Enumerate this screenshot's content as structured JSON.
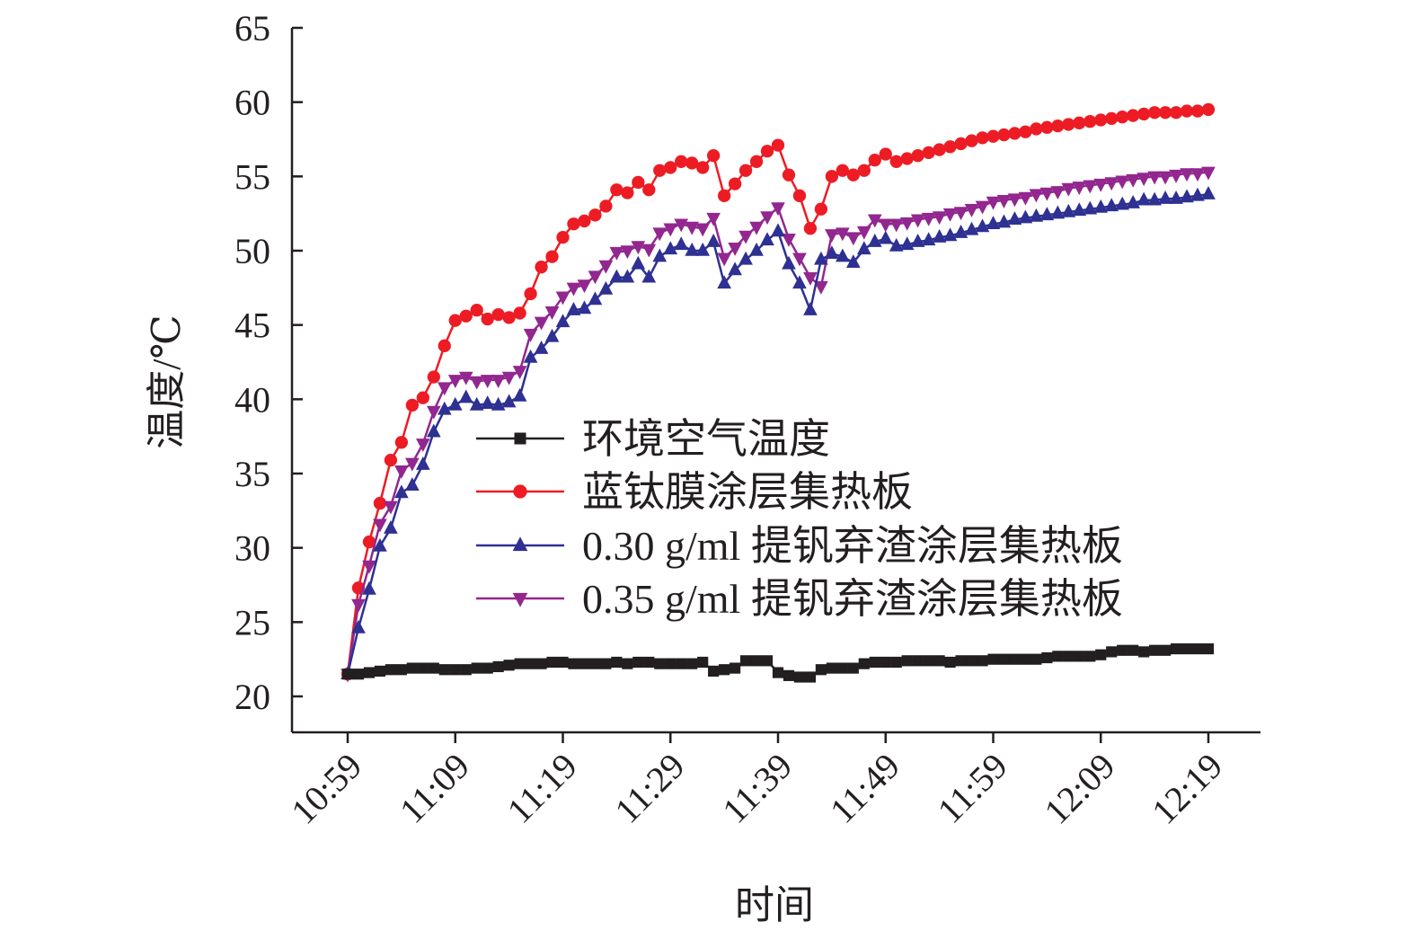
{
  "chart_data": {
    "type": "line",
    "xlabel": "时间",
    "ylabel": "温度/℃",
    "ylim": [
      20,
      65
    ],
    "yticks": [
      "20",
      "25",
      "30",
      "35",
      "40",
      "45",
      "50",
      "55",
      "60",
      "65"
    ],
    "xticks": [
      "10:59",
      "11:09",
      "11:19",
      "11:29",
      "11:39",
      "11:49",
      "11:59",
      "12:09",
      "12:19"
    ],
    "xlim": [
      "10:59",
      "12:19"
    ],
    "legend_position": "center-right",
    "grid": false,
    "series": [
      {
        "name": "环境空气温度",
        "color": "#231f20",
        "marker": "square",
        "x": [
          "10:59",
          "11:00",
          "11:01",
          "11:02",
          "11:03",
          "11:04",
          "11:05",
          "11:06",
          "11:07",
          "11:08",
          "11:09",
          "11:10",
          "11:11",
          "11:12",
          "11:13",
          "11:14",
          "11:15",
          "11:16",
          "11:17",
          "11:18",
          "11:19",
          "11:20",
          "11:21",
          "11:22",
          "11:23",
          "11:24",
          "11:25",
          "11:26",
          "11:27",
          "11:28",
          "11:29",
          "11:30",
          "11:31",
          "11:32",
          "11:33",
          "11:34",
          "11:35",
          "11:36",
          "11:37",
          "11:38",
          "11:39",
          "11:40",
          "11:41",
          "11:42",
          "11:43",
          "11:44",
          "11:45",
          "11:46",
          "11:47",
          "11:48",
          "11:49",
          "11:50",
          "11:51",
          "11:52",
          "11:53",
          "11:54",
          "11:55",
          "11:56",
          "11:57",
          "11:58",
          "11:59",
          "12:00",
          "12:01",
          "12:02",
          "12:03",
          "12:04",
          "12:05",
          "12:06",
          "12:07",
          "12:08",
          "12:09",
          "12:10",
          "12:11",
          "12:12",
          "12:13",
          "12:14",
          "12:15",
          "12:16",
          "12:17",
          "12:18",
          "12:19"
        ],
        "y": [
          21.5,
          21.5,
          21.6,
          21.7,
          21.8,
          21.8,
          21.9,
          21.9,
          21.9,
          21.8,
          21.8,
          21.8,
          21.9,
          21.9,
          22.0,
          22.1,
          22.2,
          22.2,
          22.2,
          22.3,
          22.3,
          22.2,
          22.2,
          22.2,
          22.2,
          22.3,
          22.2,
          22.3,
          22.3,
          22.2,
          22.2,
          22.2,
          22.2,
          22.3,
          21.7,
          21.8,
          21.9,
          22.4,
          22.4,
          22.4,
          21.6,
          21.4,
          21.3,
          21.3,
          21.8,
          21.9,
          21.9,
          21.9,
          22.2,
          22.3,
          22.3,
          22.3,
          22.4,
          22.4,
          22.4,
          22.4,
          22.3,
          22.4,
          22.4,
          22.4,
          22.5,
          22.5,
          22.5,
          22.5,
          22.5,
          22.6,
          22.7,
          22.7,
          22.7,
          22.7,
          22.8,
          23.0,
          23.1,
          23.1,
          23.0,
          23.1,
          23.1,
          23.2,
          23.2,
          23.2,
          23.2
        ]
      },
      {
        "name": "蓝钛膜涂层集热板",
        "color": "#ed1c24",
        "marker": "circle",
        "x": [
          "10:59",
          "11:00",
          "11:01",
          "11:02",
          "11:03",
          "11:04",
          "11:05",
          "11:06",
          "11:07",
          "11:08",
          "11:09",
          "11:10",
          "11:11",
          "11:12",
          "11:13",
          "11:14",
          "11:15",
          "11:16",
          "11:17",
          "11:18",
          "11:19",
          "11:20",
          "11:21",
          "11:22",
          "11:23",
          "11:24",
          "11:25",
          "11:26",
          "11:27",
          "11:28",
          "11:29",
          "11:30",
          "11:31",
          "11:32",
          "11:33",
          "11:34",
          "11:35",
          "11:36",
          "11:37",
          "11:38",
          "11:39",
          "11:40",
          "11:41",
          "11:42",
          "11:43",
          "11:44",
          "11:45",
          "11:46",
          "11:47",
          "11:48",
          "11:49",
          "11:50",
          "11:51",
          "11:52",
          "11:53",
          "11:54",
          "11:55",
          "11:56",
          "11:57",
          "11:58",
          "11:59",
          "12:00",
          "12:01",
          "12:02",
          "12:03",
          "12:04",
          "12:05",
          "12:06",
          "12:07",
          "12:08",
          "12:09",
          "12:10",
          "12:11",
          "12:12",
          "12:13",
          "12:14",
          "12:15",
          "12:16",
          "12:17",
          "12:18",
          "12:19"
        ],
        "y": [
          21.5,
          27.3,
          30.4,
          33.0,
          35.9,
          37.1,
          39.6,
          40.1,
          41.5,
          43.6,
          45.3,
          45.6,
          46.0,
          45.4,
          45.7,
          45.5,
          45.8,
          47.1,
          48.9,
          49.6,
          50.9,
          51.8,
          52.0,
          52.4,
          53.0,
          54.1,
          53.9,
          54.6,
          54.1,
          55.4,
          55.6,
          56.0,
          55.9,
          55.6,
          56.4,
          53.7,
          54.5,
          55.4,
          56.0,
          56.7,
          57.1,
          55.1,
          53.7,
          51.5,
          52.8,
          55.0,
          55.4,
          55.1,
          55.4,
          56.1,
          56.5,
          56.0,
          56.2,
          56.4,
          56.6,
          56.8,
          57.0,
          57.2,
          57.4,
          57.6,
          57.7,
          57.8,
          57.9,
          58.0,
          58.2,
          58.3,
          58.4,
          58.5,
          58.6,
          58.7,
          58.8,
          58.9,
          59.0,
          59.1,
          59.2,
          59.3,
          59.3,
          59.3,
          59.4,
          59.4,
          59.5
        ]
      },
      {
        "name": "0.30 g/ml 提钒弃渣涂层集热板",
        "color": "#2e3192",
        "marker": "triangle-up",
        "x": [
          "10:59",
          "11:00",
          "11:01",
          "11:02",
          "11:03",
          "11:04",
          "11:05",
          "11:06",
          "11:07",
          "11:08",
          "11:09",
          "11:10",
          "11:11",
          "11:12",
          "11:13",
          "11:14",
          "11:15",
          "11:16",
          "11:17",
          "11:18",
          "11:19",
          "11:20",
          "11:21",
          "11:22",
          "11:23",
          "11:24",
          "11:25",
          "11:26",
          "11:27",
          "11:28",
          "11:29",
          "11:30",
          "11:31",
          "11:32",
          "11:33",
          "11:34",
          "11:35",
          "11:36",
          "11:37",
          "11:38",
          "11:39",
          "11:40",
          "11:41",
          "11:42",
          "11:43",
          "11:44",
          "11:45",
          "11:46",
          "11:47",
          "11:48",
          "11:49",
          "11:50",
          "11:51",
          "11:52",
          "11:53",
          "11:54",
          "11:55",
          "11:56",
          "11:57",
          "11:58",
          "11:59",
          "12:00",
          "12:01",
          "12:02",
          "12:03",
          "12:04",
          "12:05",
          "12:06",
          "12:07",
          "12:08",
          "12:09",
          "12:10",
          "12:11",
          "12:12",
          "12:13",
          "12:14",
          "12:15",
          "12:16",
          "12:17",
          "12:18",
          "12:19"
        ],
        "y": [
          21.5,
          24.6,
          27.2,
          30.1,
          31.3,
          33.7,
          34.2,
          35.6,
          37.8,
          39.3,
          39.6,
          40.1,
          39.6,
          39.7,
          39.6,
          39.8,
          40.2,
          42.8,
          43.4,
          44.2,
          45.2,
          46.0,
          46.1,
          46.7,
          47.4,
          48.2,
          48.2,
          49.1,
          48.2,
          49.6,
          50.1,
          50.4,
          50.0,
          50.0,
          50.6,
          47.8,
          48.7,
          49.4,
          50.0,
          50.7,
          51.3,
          49.1,
          47.8,
          46.0,
          49.4,
          49.8,
          49.6,
          49.2,
          50.1,
          50.6,
          50.8,
          50.3,
          50.4,
          50.6,
          50.7,
          50.9,
          51.0,
          51.2,
          51.4,
          51.6,
          51.8,
          51.9,
          52.1,
          52.2,
          52.3,
          52.4,
          52.5,
          52.6,
          52.7,
          52.8,
          52.9,
          53.0,
          53.1,
          53.2,
          53.4,
          53.4,
          53.5,
          53.5,
          53.6,
          53.7,
          53.8
        ]
      },
      {
        "name": "0.35 g/ml 提钒弃渣涂层集热板",
        "color": "#92278f",
        "marker": "triangle-down",
        "x": [
          "10:59",
          "11:00",
          "11:01",
          "11:02",
          "11:03",
          "11:04",
          "11:05",
          "11:06",
          "11:07",
          "11:08",
          "11:09",
          "11:10",
          "11:11",
          "11:12",
          "11:13",
          "11:14",
          "11:15",
          "11:16",
          "11:17",
          "11:18",
          "11:19",
          "11:20",
          "11:21",
          "11:22",
          "11:23",
          "11:24",
          "11:25",
          "11:26",
          "11:27",
          "11:28",
          "11:29",
          "11:30",
          "11:31",
          "11:32",
          "11:33",
          "11:34",
          "11:35",
          "11:36",
          "11:37",
          "11:38",
          "11:39",
          "11:40",
          "11:41",
          "11:42",
          "11:43",
          "11:44",
          "11:45",
          "11:46",
          "11:47",
          "11:48",
          "11:49",
          "11:50",
          "11:51",
          "11:52",
          "11:53",
          "11:54",
          "11:55",
          "11:56",
          "11:57",
          "11:58",
          "11:59",
          "12:00",
          "12:01",
          "12:02",
          "12:03",
          "12:04",
          "12:05",
          "12:06",
          "12:07",
          "12:08",
          "12:09",
          "12:10",
          "12:11",
          "12:12",
          "12:13",
          "12:14",
          "12:15",
          "12:16",
          "12:17",
          "12:18",
          "12:19"
        ],
        "y": [
          21.5,
          26.2,
          28.8,
          31.6,
          32.8,
          35.2,
          35.7,
          37.0,
          39.2,
          40.8,
          41.3,
          41.5,
          41.2,
          41.3,
          41.3,
          41.5,
          41.9,
          44.4,
          45.2,
          45.9,
          46.9,
          47.5,
          47.7,
          48.3,
          49.0,
          49.9,
          50.0,
          50.3,
          50.1,
          51.2,
          51.5,
          51.8,
          51.6,
          51.5,
          52.2,
          49.5,
          50.2,
          51.0,
          51.6,
          52.3,
          52.9,
          50.8,
          49.5,
          48.2,
          47.6,
          51.1,
          51.2,
          50.9,
          51.3,
          52.1,
          51.8,
          51.8,
          51.9,
          52.1,
          52.2,
          52.3,
          52.5,
          52.6,
          52.8,
          53.0,
          53.3,
          53.4,
          53.5,
          53.6,
          53.8,
          53.9,
          54.0,
          54.2,
          54.3,
          54.4,
          54.5,
          54.6,
          54.7,
          54.8,
          54.9,
          55.0,
          55.0,
          55.1,
          55.2,
          55.2,
          55.3
        ]
      }
    ]
  }
}
